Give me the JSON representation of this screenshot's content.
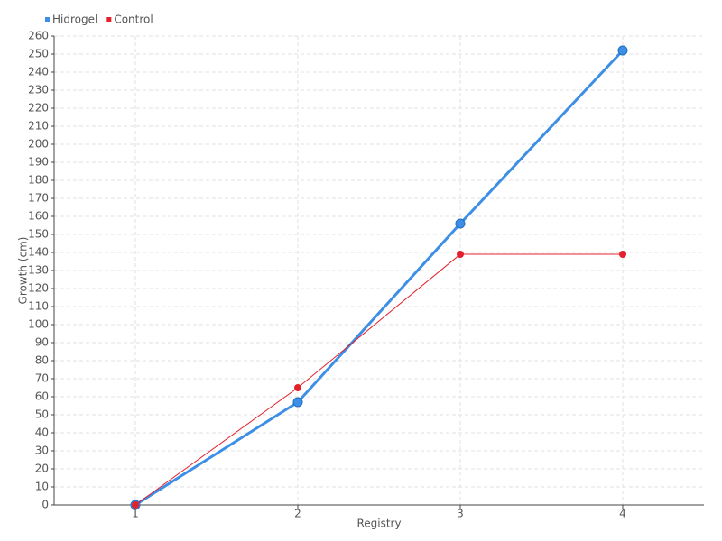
{
  "chart_data": {
    "type": "line",
    "categories": [
      "1",
      "2",
      "3",
      "4"
    ],
    "series": [
      {
        "name": "Hidrogel",
        "color": "#3d8fe6",
        "values": [
          0,
          57,
          156,
          252
        ]
      },
      {
        "name": "Control",
        "color": "#e3202c",
        "values": [
          0,
          65,
          139,
          139
        ]
      }
    ],
    "x_label": "Registry",
    "y_label": "Growth (cm)",
    "ylim": [
      0,
      260
    ],
    "yticks": [
      0,
      10,
      20,
      30,
      40,
      50,
      60,
      70,
      80,
      90,
      100,
      110,
      120,
      130,
      140,
      150,
      160,
      170,
      180,
      190,
      200,
      210,
      220,
      230,
      240,
      250,
      260
    ],
    "grid": true,
    "legend": "top-left"
  }
}
